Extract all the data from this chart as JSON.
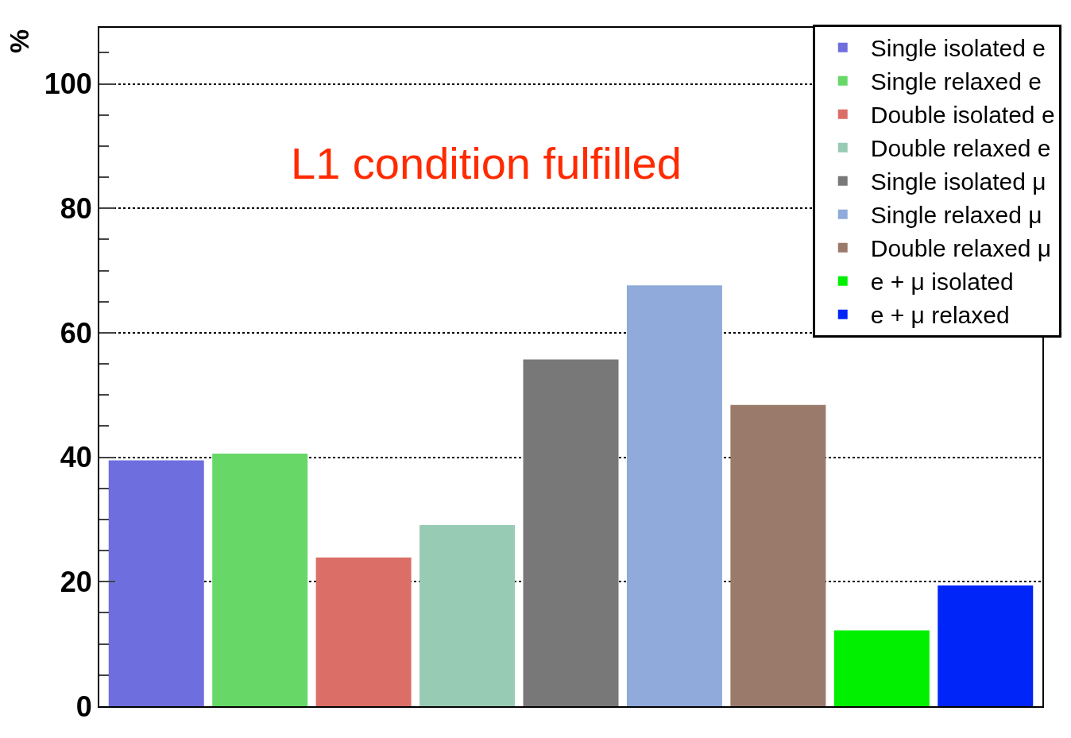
{
  "chart_data": {
    "type": "bar",
    "title": "L1 condition fulfilled",
    "ylabel": "%",
    "categories": [
      null,
      null,
      null,
      null,
      null,
      null,
      null,
      null,
      null
    ],
    "series": [
      {
        "name": "Single isolated e",
        "color": "#6f6edf",
        "values": [
          39.5,
          null,
          null,
          null,
          null,
          null,
          null,
          null,
          null
        ]
      },
      {
        "name": "Single relaxed e",
        "color": "#67d868",
        "values": [
          null,
          40.6,
          null,
          null,
          null,
          null,
          null,
          null,
          null
        ]
      },
      {
        "name": "Double isolated e",
        "color": "#db6e66",
        "values": [
          null,
          null,
          23.9,
          null,
          null,
          null,
          null,
          null,
          null
        ]
      },
      {
        "name": "Double relaxed e",
        "color": "#98cbb3",
        "values": [
          null,
          null,
          null,
          29.1,
          null,
          null,
          null,
          null,
          null
        ]
      },
      {
        "name": "Single isolated μ",
        "color": "#787878",
        "values": [
          null,
          null,
          null,
          null,
          55.7,
          null,
          null,
          null,
          null
        ]
      },
      {
        "name": "Single relaxed μ",
        "color": "#8faadb",
        "values": [
          null,
          null,
          null,
          null,
          null,
          67.6,
          null,
          null,
          null
        ]
      },
      {
        "name": "Double relaxed μ",
        "color": "#9a7b6b",
        "values": [
          null,
          null,
          null,
          null,
          null,
          null,
          48.4,
          null,
          null
        ]
      },
      {
        "name": "e + μ isolated",
        "color": "#00f000",
        "values": [
          null,
          null,
          null,
          null,
          null,
          null,
          null,
          12.2,
          null
        ]
      },
      {
        "name": "e + μ relaxed",
        "color": "#0025f9",
        "values": [
          null,
          null,
          null,
          null,
          null,
          null,
          null,
          null,
          19.4
        ]
      }
    ],
    "ylim": [
      0,
      109
    ],
    "yticks": [
      0,
      {
        "value": 5,
        "label": null
      },
      {
        "value": 10,
        "label": null
      },
      {
        "value": 15,
        "label": null
      },
      20,
      {
        "value": 25,
        "label": null
      },
      {
        "value": 30,
        "label": null
      },
      {
        "value": 35,
        "label": null
      },
      40,
      {
        "value": 45,
        "label": null
      },
      {
        "value": 50,
        "label": null
      },
      {
        "value": 55,
        "label": null
      },
      60,
      {
        "value": 65,
        "label": null
      },
      {
        "value": 70,
        "label": null
      },
      {
        "value": 75,
        "label": null
      },
      80,
      {
        "value": 85,
        "label": null
      },
      {
        "value": 90,
        "label": null
      },
      {
        "value": 95,
        "label": null
      },
      100,
      {
        "value": 105,
        "label": null
      }
    ],
    "grid": "y",
    "legend": "top right"
  }
}
